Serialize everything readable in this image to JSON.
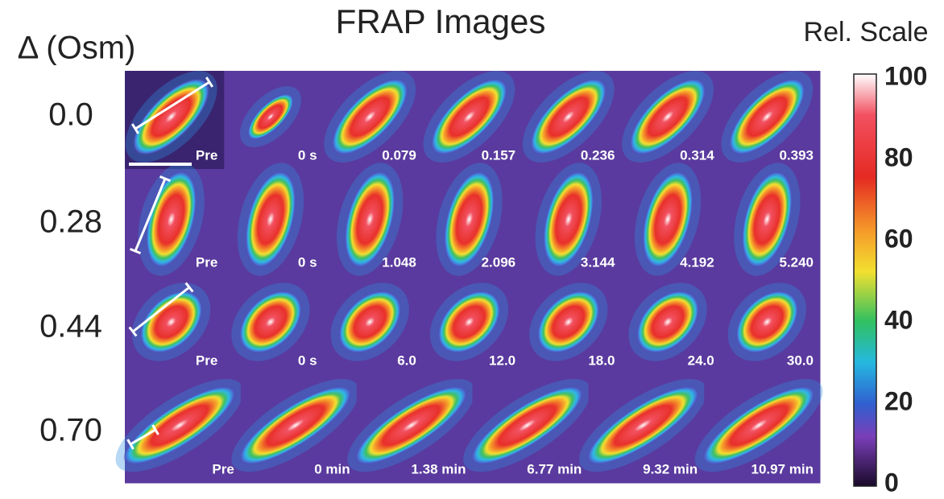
{
  "header": {
    "title": "FRAP Images",
    "row_header": "Δ (Osm)"
  },
  "rows": [
    {
      "label": "0.0",
      "tiles": [
        "Pre",
        "0 s",
        "0.079",
        "0.157",
        "0.236",
        "0.314",
        "0.393"
      ]
    },
    {
      "label": "0.28",
      "tiles": [
        "Pre",
        "0 s",
        "1.048",
        "2.096",
        "3.144",
        "4.192",
        "5.240"
      ]
    },
    {
      "label": "0.44",
      "tiles": [
        "Pre",
        "0 s",
        "6.0",
        "12.0",
        "18.0",
        "24.0",
        "30.0"
      ]
    },
    {
      "label": "0.70",
      "tiles": [
        "Pre",
        "0 min",
        "1.38 min",
        "6.77 min",
        "9.32 min",
        "10.97 min"
      ]
    }
  ],
  "colorbar": {
    "title": "Rel. Scale",
    "ticks": [
      100,
      80,
      60,
      40,
      20,
      0
    ]
  }
}
